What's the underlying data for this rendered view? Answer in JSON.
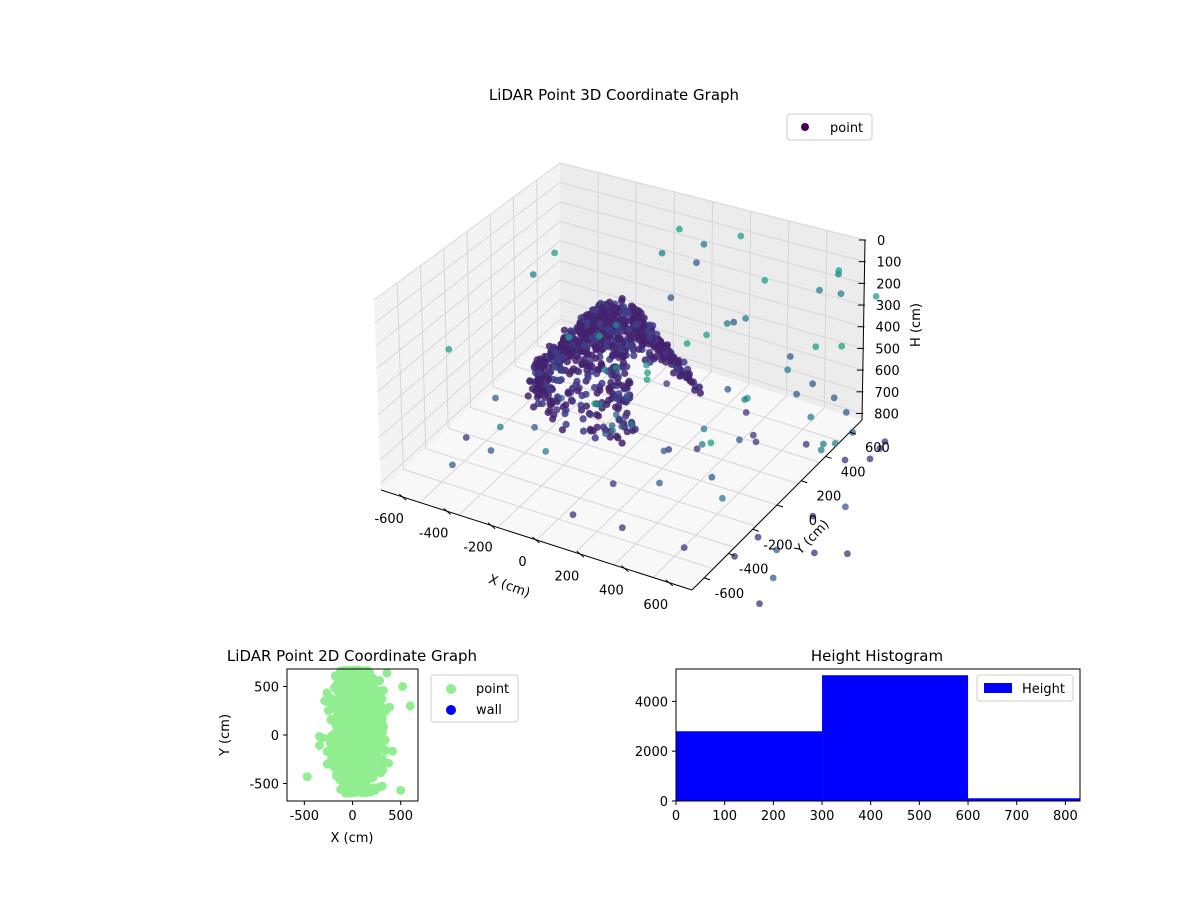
{
  "chart_data": [
    {
      "type": "scatter3d",
      "title": "LiDAR Point 3D Coordinate Graph",
      "xlabel": "X (cm)",
      "ylabel": "Y (cm)",
      "zlabel": "H (cm)",
      "xlim": [
        -700,
        700
      ],
      "ylim": [
        -700,
        700
      ],
      "zlim": [
        0,
        830
      ],
      "x_ticks": [
        -600,
        -400,
        -200,
        0,
        200,
        400,
        600
      ],
      "y_ticks": [
        -600,
        -400,
        -200,
        0,
        200,
        400,
        600
      ],
      "z_ticks": [
        0,
        100,
        200,
        300,
        400,
        500,
        600,
        700,
        800
      ],
      "z_inverted": true,
      "legend": {
        "placement": "top-right",
        "entries": [
          {
            "label": "point",
            "color": "#440154"
          }
        ]
      },
      "colormap": "viridis",
      "grid": true
    },
    {
      "type": "scatter",
      "title": "LiDAR Point 2D Coordinate Graph",
      "xlabel": "X (cm)",
      "ylabel": "Y (cm)",
      "xlim": [
        -680,
        680
      ],
      "ylim": [
        -680,
        680
      ],
      "x_ticks": [
        -500,
        0,
        500
      ],
      "y_ticks": [
        -500,
        0,
        500
      ],
      "series": [
        {
          "name": "point",
          "color": "#90ee90"
        },
        {
          "name": "wall",
          "color": "#0000ff"
        }
      ],
      "legend": {
        "placement": "outside-right"
      },
      "grid": false
    },
    {
      "type": "bar",
      "title": "Height Histogram",
      "xlim": [
        0,
        830
      ],
      "ylim": [
        0,
        5300
      ],
      "x_ticks": [
        0,
        100,
        200,
        300,
        400,
        500,
        600,
        700,
        800
      ],
      "y_ticks": [
        0,
        2000,
        4000
      ],
      "bins": [
        {
          "start": 0,
          "end": 300,
          "count": 2800
        },
        {
          "start": 300,
          "end": 600,
          "count": 5050
        },
        {
          "start": 600,
          "end": 830,
          "count": 110
        }
      ],
      "series": [
        {
          "name": "Height",
          "color": "#0000ff"
        }
      ],
      "legend": {
        "placement": "top-right"
      },
      "grid": false
    }
  ]
}
